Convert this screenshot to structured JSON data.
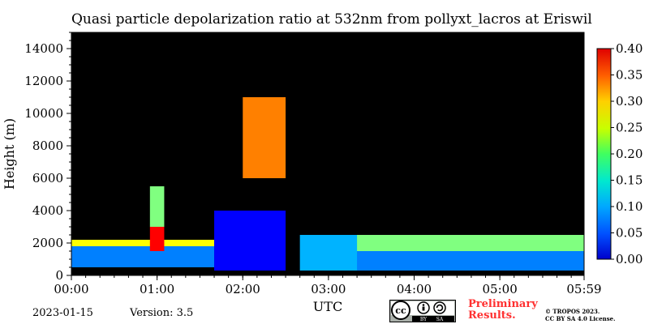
{
  "chart_data": {
    "type": "heatmap",
    "title": "Quasi particle depolarization ratio at 532nm from pollyxt_lacros at Eriswil",
    "xlabel": "UTC",
    "ylabel": "Height (m)",
    "xlim": [
      "00:00",
      "05:59"
    ],
    "ylim": [
      0,
      15000
    ],
    "x_ticks": [
      "00:00",
      "01:00",
      "02:00",
      "03:00",
      "04:00",
      "05:00",
      "05:59"
    ],
    "y_ticks": [
      0,
      2000,
      4000,
      6000,
      8000,
      10000,
      12000,
      14000
    ],
    "colorbar": {
      "range": [
        0.0,
        0.4
      ],
      "ticks": [
        "0.00",
        "0.05",
        "0.10",
        "0.15",
        "0.20",
        "0.25",
        "0.30",
        "0.35",
        "0.40"
      ],
      "colormap": "jet"
    },
    "background_color": "#000000",
    "features": [
      {
        "x": [
          "00:00",
          "01:40"
        ],
        "height": [
          500,
          1800
        ],
        "value": 0.1
      },
      {
        "x": [
          "00:00",
          "01:40"
        ],
        "height": [
          1800,
          2200
        ],
        "value": 0.25
      },
      {
        "x": [
          "00:55",
          "01:05"
        ],
        "height": [
          1500,
          3000
        ],
        "value": 0.35
      },
      {
        "x": [
          "00:55",
          "01:05"
        ],
        "height": [
          3000,
          5500
        ],
        "value": 0.2
      },
      {
        "x": [
          "01:40",
          "02:30"
        ],
        "height": [
          300,
          4000
        ],
        "value": 0.05
      },
      {
        "x": [
          "02:00",
          "02:30"
        ],
        "height": [
          6000,
          11000
        ],
        "value": 0.3
      },
      {
        "x": [
          "02:40",
          "03:25"
        ],
        "height": [
          300,
          2500
        ],
        "value": 0.12
      },
      {
        "x": [
          "03:20",
          "05:59"
        ],
        "height": [
          300,
          1500
        ],
        "value": 0.1
      },
      {
        "x": [
          "03:20",
          "05:59"
        ],
        "height": [
          1500,
          2500
        ],
        "value": 0.2
      }
    ]
  },
  "footer": {
    "date": "2023-01-15",
    "version": "Version: 3.5",
    "preliminary_line1": "Preliminary",
    "preliminary_line2": "Results.",
    "copyright_line1": "© TROPOS 2023.",
    "copyright_line2": "CC BY SA 4.0 License.",
    "license_badge": {
      "cc": "cc",
      "by": "BY",
      "sa": "SA"
    }
  }
}
